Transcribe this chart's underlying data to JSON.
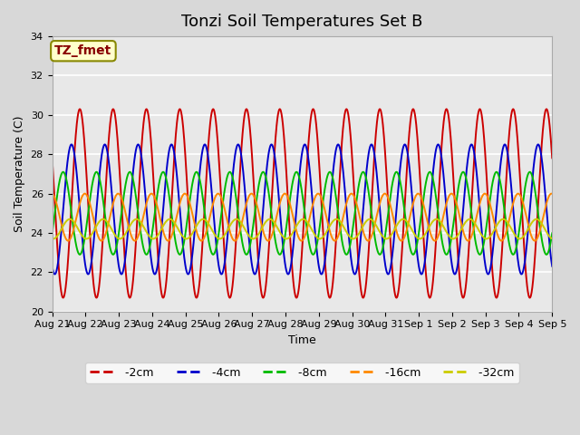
{
  "title": "Tonzi Soil Temperatures Set B",
  "xlabel": "Time",
  "ylabel": "Soil Temperature (C)",
  "ylim": [
    20,
    34
  ],
  "n_days": 15,
  "x_tick_labels": [
    "Aug 21",
    "Aug 22",
    "Aug 23",
    "Aug 24",
    "Aug 25",
    "Aug 26",
    "Aug 27",
    "Aug 28",
    "Aug 29",
    "Aug 30",
    "Aug 31",
    "Sep 1",
    "Sep 2",
    "Sep 3",
    "Sep 4",
    "Sep 5"
  ],
  "series_colors": {
    "-2cm": "#cc0000",
    "-4cm": "#0000cc",
    "-8cm": "#00bb00",
    "-16cm": "#ff8800",
    "-32cm": "#cccc00"
  },
  "series_params": {
    "-2cm": {
      "amp": 4.8,
      "phase": 0.0,
      "mean": 25.5
    },
    "-4cm": {
      "amp": 3.3,
      "phase": 0.25,
      "mean": 25.2
    },
    "-8cm": {
      "amp": 2.1,
      "phase": 0.5,
      "mean": 25.0
    },
    "-16cm": {
      "amp": 1.2,
      "phase": 0.85,
      "mean": 24.8
    },
    "-32cm": {
      "amp": 0.5,
      "phase": 1.3,
      "mean": 24.2
    }
  },
  "legend_label": "TZ_fmet",
  "legend_bg": "#ffffcc",
  "legend_border": "#888800",
  "legend_text_color": "#880000",
  "fig_bg": "#d8d8d8",
  "ax_bg": "#e8e8e8",
  "grid_color": "#ffffff",
  "title_fontsize": 13,
  "axis_label_fontsize": 9,
  "tick_fontsize": 8,
  "legend_fontsize": 9,
  "linewidth": 1.4
}
